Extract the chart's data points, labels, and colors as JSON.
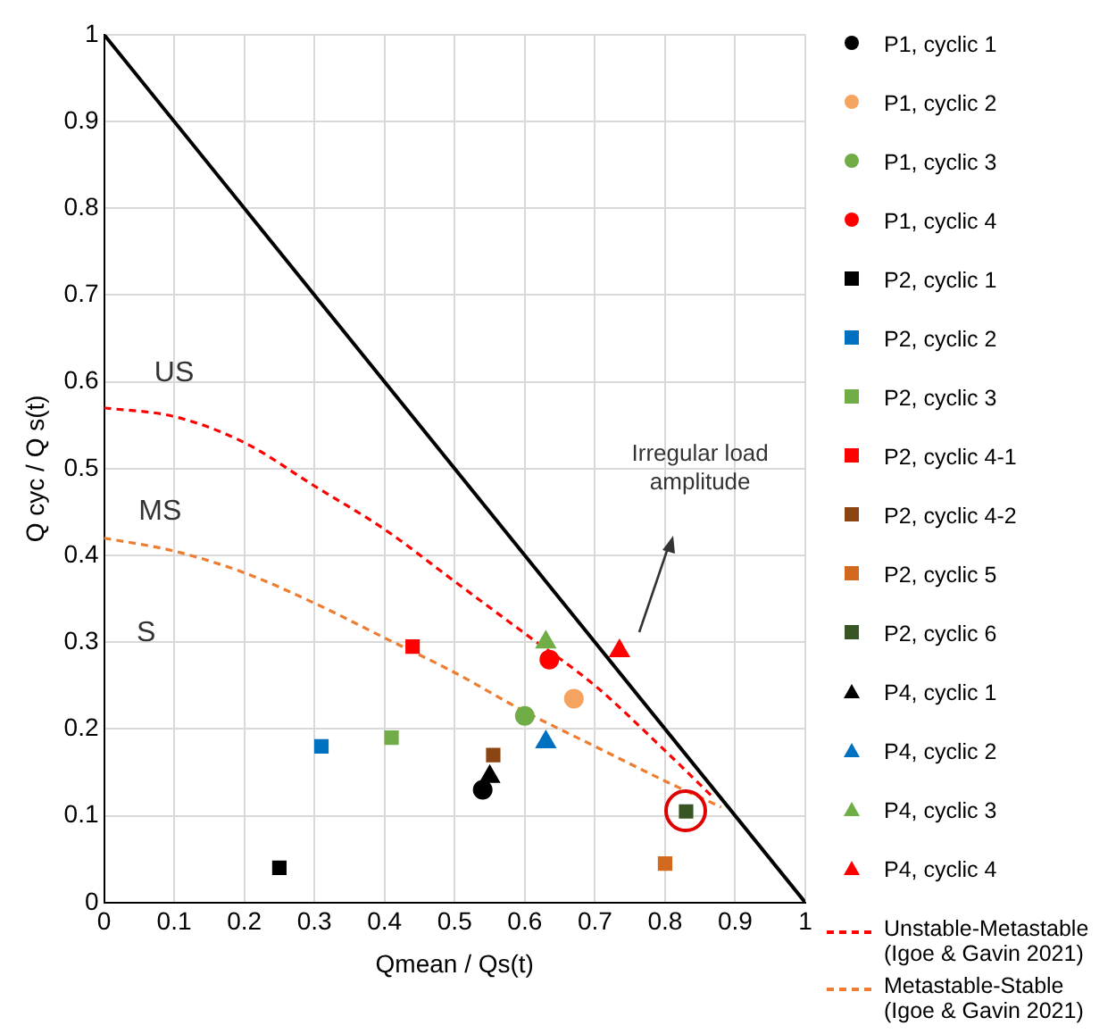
{
  "chart_data": {
    "type": "scatter",
    "xlabel": "Qmean / Qs(t)",
    "ylabel": "Q cyc / Q s(t)",
    "xlim": [
      0,
      1
    ],
    "ylim": [
      0,
      1
    ],
    "xticks": [
      0,
      0.1,
      0.2,
      0.3,
      0.4,
      0.5,
      0.6,
      0.7,
      0.8,
      0.9,
      1
    ],
    "yticks": [
      0,
      0.1,
      0.2,
      0.3,
      0.4,
      0.5,
      0.6,
      0.7,
      0.8,
      0.9,
      1
    ],
    "grid": true,
    "legend": "right",
    "annotations": [
      "US",
      "MS",
      "S",
      "Irregular load amplitude"
    ],
    "series": [
      {
        "type": "line",
        "color": "#000000",
        "x": [
          0,
          1
        ],
        "values": [
          1,
          0
        ],
        "marker": "none",
        "line_style": "solid"
      },
      {
        "name": "P1, cyclic 1",
        "color": "#000000",
        "marker": "circle",
        "x": [
          0.54
        ],
        "values": [
          0.13
        ]
      },
      {
        "name": "P1, cyclic 2",
        "color": "#f4a460",
        "marker": "circle",
        "x": [
          0.67
        ],
        "values": [
          0.235
        ]
      },
      {
        "name": "P1, cyclic 3",
        "color": "#70ad47",
        "marker": "circle",
        "x": [
          0.6
        ],
        "values": [
          0.215
        ]
      },
      {
        "name": "P1, cyclic 4",
        "color": "#ff0000",
        "marker": "circle",
        "x": [
          0.635
        ],
        "values": [
          0.28
        ]
      },
      {
        "name": "P2, cyclic 1",
        "color": "#000000",
        "marker": "square",
        "x": [
          0.25
        ],
        "values": [
          0.04
        ]
      },
      {
        "name": "P2, cyclic 2",
        "color": "#0070c0",
        "marker": "square",
        "x": [
          0.31
        ],
        "values": [
          0.18
        ]
      },
      {
        "name": "P2, cyclic 3",
        "color": "#70ad47",
        "marker": "square",
        "x": [
          0.41
        ],
        "values": [
          0.19
        ]
      },
      {
        "name": "P2, cyclic 4-1",
        "color": "#ff0000",
        "marker": "square",
        "x": [
          0.44
        ],
        "values": [
          0.295
        ]
      },
      {
        "name": "P2, cyclic 4-2",
        "color": "#8b4513",
        "marker": "square",
        "x": [
          0.555
        ],
        "values": [
          0.17
        ]
      },
      {
        "name": "P2, cyclic 5",
        "color": "#d2691e",
        "marker": "square",
        "x": [
          0.8
        ],
        "values": [
          0.045
        ]
      },
      {
        "name": "P2, cyclic 6",
        "color": "#375623",
        "marker": "square",
        "x": [
          0.83
        ],
        "values": [
          0.105
        ]
      },
      {
        "name": "P4, cyclic 1",
        "color": "#000000",
        "marker": "triangle",
        "x": [
          0.55
        ],
        "values": [
          0.145
        ]
      },
      {
        "name": "P4, cyclic 2",
        "color": "#0070c0",
        "marker": "triangle",
        "x": [
          0.63
        ],
        "values": [
          0.185
        ]
      },
      {
        "name": "P4, cyclic 3",
        "color": "#70ad47",
        "marker": "triangle",
        "x": [
          0.63
        ],
        "values": [
          0.3
        ]
      },
      {
        "name": "P4, cyclic 4",
        "color": "#ff0000",
        "marker": "triangle",
        "x": [
          0.735
        ],
        "values": [
          0.29
        ]
      },
      {
        "name": "Unstable-Metastable (Igoe & Gavin 2021)",
        "type": "line",
        "color": "#ff0000",
        "marker": "none",
        "line_style": "dashed",
        "x": [
          0,
          0.1,
          0.2,
          0.3,
          0.4,
          0.5,
          0.6,
          0.7,
          0.8,
          0.87
        ],
        "values": [
          0.57,
          0.56,
          0.53,
          0.48,
          0.43,
          0.37,
          0.31,
          0.25,
          0.175,
          0.12
        ]
      },
      {
        "name": "Metastable-Stable (Igoe & Gavin 2021)",
        "type": "line",
        "color": "#ed7d31",
        "marker": "none",
        "line_style": "dashed",
        "x": [
          0,
          0.1,
          0.2,
          0.3,
          0.4,
          0.5,
          0.6,
          0.7,
          0.8,
          0.88
        ],
        "values": [
          0.42,
          0.405,
          0.38,
          0.345,
          0.305,
          0.265,
          0.22,
          0.18,
          0.14,
          0.11
        ]
      }
    ]
  }
}
